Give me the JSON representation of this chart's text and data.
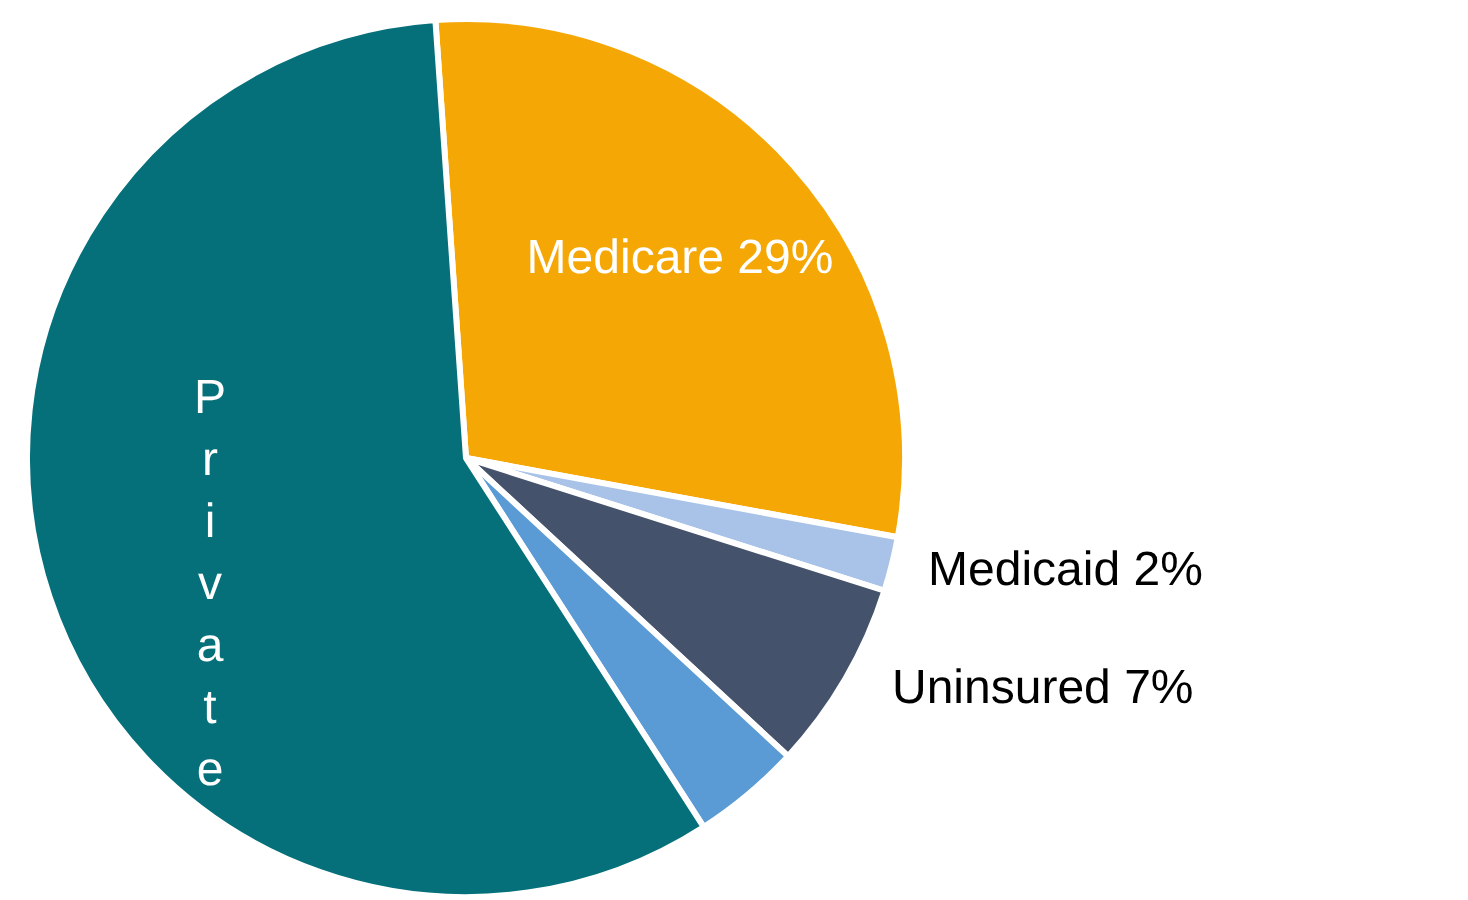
{
  "chart_data": {
    "type": "pie",
    "categories": [
      "Medicare",
      "Medicaid",
      "Uninsured",
      null,
      "Private"
    ],
    "values": [
      29,
      2,
      7,
      4,
      58
    ],
    "colors": [
      "#f5a706",
      "#a9c3e8",
      "#44526b",
      "#5b9bd5",
      "#05707a"
    ],
    "value_labels": [
      "29%",
      "2%",
      "7%",
      null,
      null
    ],
    "legend": false
  }
}
